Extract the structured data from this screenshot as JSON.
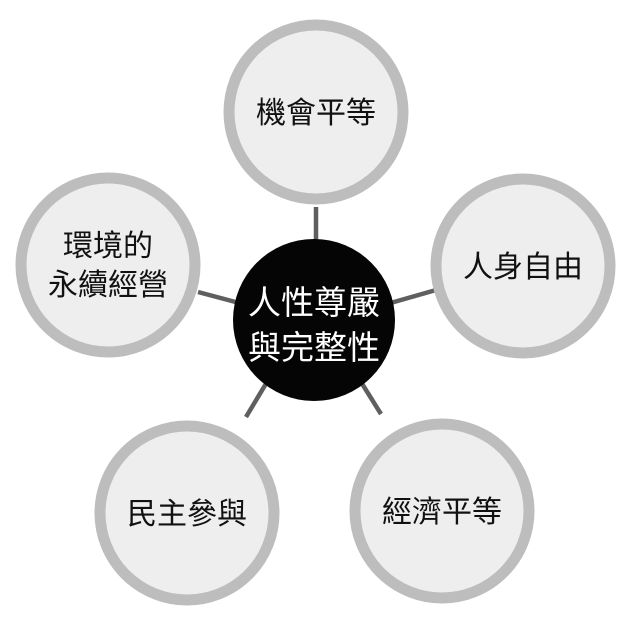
{
  "diagram": {
    "type": "hub-and-spoke",
    "center": {
      "label_lines": [
        "人性尊嚴",
        "與完整性"
      ]
    },
    "nodes": [
      {
        "id": "opportunity-equality",
        "label_lines": [
          "機會平等"
        ]
      },
      {
        "id": "personal-freedom",
        "label_lines": [
          "人身自由"
        ]
      },
      {
        "id": "economic-equality",
        "label_lines": [
          "經濟平等"
        ]
      },
      {
        "id": "democratic-participation",
        "label_lines": [
          "民主參與"
        ]
      },
      {
        "id": "environmental-sustainability",
        "label_lines": [
          "環境的",
          "永續經營"
        ]
      }
    ],
    "colors": {
      "center_fill": "#050505",
      "center_text": "#ffffff",
      "node_fill": "#eeeeee",
      "node_ring": "#bdbdbd",
      "node_text": "#111111",
      "connector": "#5f5f5f"
    }
  }
}
